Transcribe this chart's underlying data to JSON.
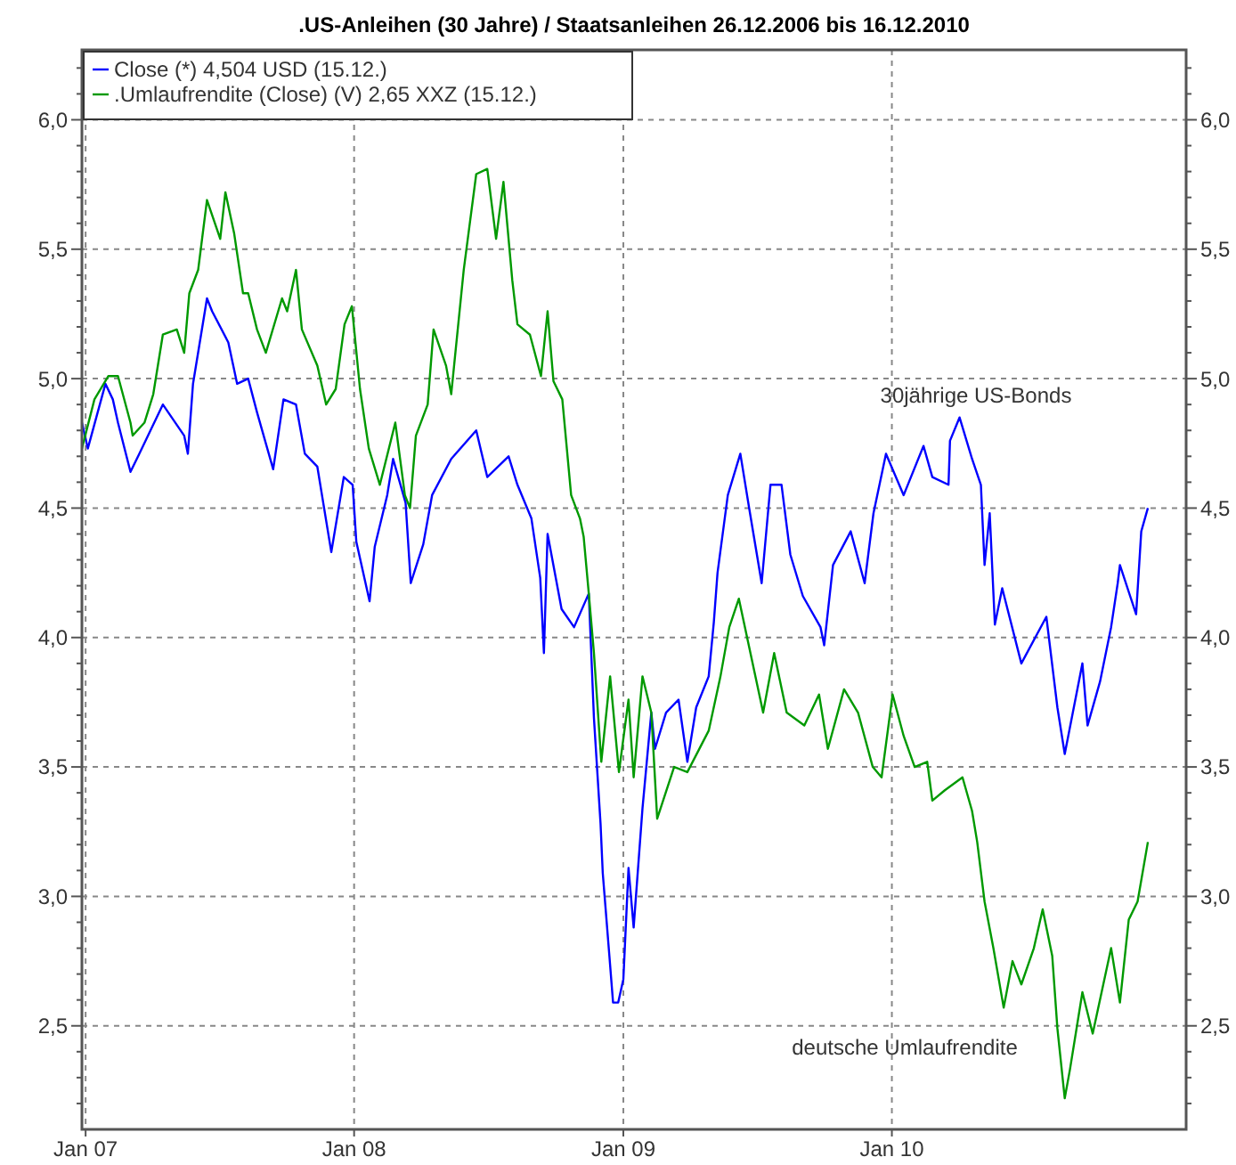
{
  "chart_data": {
    "type": "line",
    "title": ".US-Anleihen (30 Jahre) / Staatsanleihen 26.12.2006 bis 16.12.2010",
    "xlim": [
      "2006-12-27",
      "2011-02-05"
    ],
    "xticks": [
      {
        "value": "2007-01-01",
        "label": "Jan 07"
      },
      {
        "value": "2008-01-01",
        "label": "Jan 08"
      },
      {
        "value": "2009-01-01",
        "label": "Jan 09"
      },
      {
        "value": "2010-01-01",
        "label": "Jan 10"
      }
    ],
    "ylim": [
      2.1,
      6.27
    ],
    "yticks": [
      {
        "value": 2.2,
        "label": null
      },
      {
        "value": 2.3,
        "label": null
      },
      {
        "value": 2.4,
        "label": null
      },
      {
        "value": 2.5,
        "label": "2,5"
      },
      {
        "value": 2.6,
        "label": null
      },
      {
        "value": 2.7,
        "label": null
      },
      {
        "value": 2.8,
        "label": null
      },
      {
        "value": 2.9,
        "label": null
      },
      {
        "value": 3.0,
        "label": "3,0"
      },
      {
        "value": 3.1,
        "label": null
      },
      {
        "value": 3.2,
        "label": null
      },
      {
        "value": 3.3,
        "label": null
      },
      {
        "value": 3.4,
        "label": null
      },
      {
        "value": 3.5,
        "label": "3,5"
      },
      {
        "value": 3.6,
        "label": null
      },
      {
        "value": 3.7,
        "label": null
      },
      {
        "value": 3.8,
        "label": null
      },
      {
        "value": 3.9,
        "label": null
      },
      {
        "value": 4.0,
        "label": "4,0"
      },
      {
        "value": 4.1,
        "label": null
      },
      {
        "value": 4.2,
        "label": null
      },
      {
        "value": 4.3,
        "label": null
      },
      {
        "value": 4.4,
        "label": null
      },
      {
        "value": 4.5,
        "label": "4,5"
      },
      {
        "value": 4.6,
        "label": null
      },
      {
        "value": 4.7,
        "label": null
      },
      {
        "value": 4.8,
        "label": null
      },
      {
        "value": 4.9,
        "label": null
      },
      {
        "value": 5.0,
        "label": "5,0"
      },
      {
        "value": 5.1,
        "label": null
      },
      {
        "value": 5.2,
        "label": null
      },
      {
        "value": 5.3,
        "label": null
      },
      {
        "value": 5.4,
        "label": null
      },
      {
        "value": 5.5,
        "label": "5,5"
      },
      {
        "value": 5.6,
        "label": null
      },
      {
        "value": 5.7,
        "label": null
      },
      {
        "value": 5.8,
        "label": null
      },
      {
        "value": 5.9,
        "label": null
      },
      {
        "value": 6.0,
        "label": "6,0"
      },
      {
        "value": 6.1,
        "label": null
      },
      {
        "value": 6.2,
        "label": null
      }
    ],
    "y2lim": [
      2.1,
      6.27
    ],
    "y2ticks": [
      {
        "value": 2.2,
        "label": null
      },
      {
        "value": 2.3,
        "label": null
      },
      {
        "value": 2.4,
        "label": null
      },
      {
        "value": 2.5,
        "label": "2,5"
      },
      {
        "value": 2.6,
        "label": null
      },
      {
        "value": 2.7,
        "label": null
      },
      {
        "value": 2.8,
        "label": null
      },
      {
        "value": 2.9,
        "label": null
      },
      {
        "value": 3.0,
        "label": "3,0"
      },
      {
        "value": 3.1,
        "label": null
      },
      {
        "value": 3.2,
        "label": null
      },
      {
        "value": 3.3,
        "label": null
      },
      {
        "value": 3.4,
        "label": null
      },
      {
        "value": 3.5,
        "label": "3,5"
      },
      {
        "value": 3.6,
        "label": null
      },
      {
        "value": 3.7,
        "label": null
      },
      {
        "value": 3.8,
        "label": null
      },
      {
        "value": 3.9,
        "label": null
      },
      {
        "value": 4.0,
        "label": "4,0"
      },
      {
        "value": 4.1,
        "label": null
      },
      {
        "value": 4.2,
        "label": null
      },
      {
        "value": 4.3,
        "label": null
      },
      {
        "value": 4.4,
        "label": null
      },
      {
        "value": 4.5,
        "label": "4,5"
      },
      {
        "value": 4.6,
        "label": null
      },
      {
        "value": 4.7,
        "label": null
      },
      {
        "value": 4.8,
        "label": null
      },
      {
        "value": 4.9,
        "label": null
      },
      {
        "value": 5.0,
        "label": "5,0"
      },
      {
        "value": 5.1,
        "label": null
      },
      {
        "value": 5.2,
        "label": null
      },
      {
        "value": 5.3,
        "label": null
      },
      {
        "value": 5.4,
        "label": null
      },
      {
        "value": 5.5,
        "label": "5,5"
      },
      {
        "value": 5.6,
        "label": null
      },
      {
        "value": 5.7,
        "label": null
      },
      {
        "value": 5.8,
        "label": null
      },
      {
        "value": 5.9,
        "label": null
      },
      {
        "value": 6.0,
        "label": "6,0"
      },
      {
        "value": 6.1,
        "label": null
      },
      {
        "value": 6.2,
        "label": null
      }
    ],
    "grid": true,
    "legend": "top left",
    "series": [
      {
        "name": "Close (*) 4,504 USD (15.12.)",
        "color": "#0000ff",
        "x": [
          "2006-12-27",
          "2007-01-04",
          "2007-01-28",
          "2007-02-07",
          "2007-02-14",
          "2007-03-03",
          "2007-03-15",
          "2007-04-16",
          "2007-05-15",
          "2007-05-20",
          "2007-05-27",
          "2007-06-15",
          "2007-06-22",
          "2007-07-14",
          "2007-07-26",
          "2007-08-10",
          "2007-08-22",
          "2007-09-13",
          "2007-09-27",
          "2007-10-14",
          "2007-10-26",
          "2007-11-12",
          "2007-12-01",
          "2007-12-18",
          "2007-12-30",
          "2008-01-04",
          "2008-01-22",
          "2008-01-29",
          "2008-02-15",
          "2008-02-23",
          "2008-03-11",
          "2008-03-18",
          "2008-04-04",
          "2008-04-16",
          "2008-05-12",
          "2008-06-15",
          "2008-06-30",
          "2008-07-29",
          "2008-08-10",
          "2008-08-29",
          "2008-09-10",
          "2008-09-15",
          "2008-09-20",
          "2008-10-09",
          "2008-10-26",
          "2008-11-15",
          "2008-11-22",
          "2008-12-01",
          "2008-12-04",
          "2008-12-13",
          "2008-12-18",
          "2008-12-25",
          "2009-01-01",
          "2009-01-08",
          "2009-01-15",
          "2009-01-27",
          "2009-02-08",
          "2009-02-13",
          "2009-02-28",
          "2009-03-17",
          "2009-03-29",
          "2009-04-10",
          "2009-04-27",
          "2009-05-04",
          "2009-05-09",
          "2009-05-23",
          "2009-06-09",
          "2009-06-21",
          "2009-07-08",
          "2009-07-20",
          "2009-08-04",
          "2009-08-16",
          "2009-09-02",
          "2009-09-26",
          "2009-10-01",
          "2009-10-13",
          "2009-11-06",
          "2009-11-25",
          "2009-12-07",
          "2009-12-24",
          "2010-01-17",
          "2010-02-13",
          "2010-02-25",
          "2010-03-19",
          "2010-03-21",
          "2010-04-03",
          "2010-04-20",
          "2010-05-02",
          "2010-05-07",
          "2010-05-14",
          "2010-05-21",
          "2010-05-31",
          "2010-06-26",
          "2010-07-30",
          "2010-08-14",
          "2010-08-24",
          "2010-09-17",
          "2010-09-24",
          "2010-10-11",
          "2010-10-26",
          "2010-11-04",
          "2010-11-07",
          "2010-11-29",
          "2010-12-06",
          "2010-12-15"
        ],
        "values": [
          4.83,
          4.73,
          4.98,
          4.92,
          4.83,
          4.64,
          4.71,
          4.9,
          4.78,
          4.71,
          4.98,
          5.31,
          5.26,
          5.14,
          4.98,
          5.0,
          4.87,
          4.65,
          4.92,
          4.9,
          4.71,
          4.66,
          4.33,
          4.62,
          4.59,
          4.37,
          4.14,
          4.35,
          4.55,
          4.69,
          4.52,
          4.21,
          4.36,
          4.55,
          4.69,
          4.8,
          4.62,
          4.7,
          4.59,
          4.46,
          4.23,
          3.94,
          4.4,
          4.11,
          4.04,
          4.17,
          3.69,
          3.28,
          3.09,
          2.77,
          2.59,
          2.59,
          2.68,
          3.11,
          2.88,
          3.34,
          3.71,
          3.57,
          3.71,
          3.76,
          3.52,
          3.73,
          3.85,
          4.06,
          4.25,
          4.55,
          4.71,
          4.5,
          4.21,
          4.59,
          4.59,
          4.32,
          4.16,
          4.04,
          3.97,
          4.28,
          4.41,
          4.21,
          4.48,
          4.71,
          4.55,
          4.74,
          4.62,
          4.59,
          4.76,
          4.85,
          4.69,
          4.59,
          4.28,
          4.48,
          4.05,
          4.19,
          3.9,
          4.08,
          3.73,
          3.55,
          3.9,
          3.66,
          3.83,
          4.04,
          4.21,
          4.28,
          4.09,
          4.41,
          4.5
        ]
      },
      {
        "name": ".Umlaufrendite (Close) (V) 2,65 XXZ (15.12.)",
        "color": "#009900",
        "x": [
          "2006-12-27",
          "2007-01-13",
          "2007-02-01",
          "2007-02-14",
          "2007-03-03",
          "2007-03-06",
          "2007-03-22",
          "2007-04-03",
          "2007-04-16",
          "2007-05-05",
          "2007-05-15",
          "2007-05-22",
          "2007-06-03",
          "2007-06-15",
          "2007-07-03",
          "2007-07-10",
          "2007-07-22",
          "2007-08-03",
          "2007-08-10",
          "2007-08-22",
          "2007-09-03",
          "2007-09-25",
          "2007-10-02",
          "2007-10-14",
          "2007-10-22",
          "2007-11-12",
          "2007-11-24",
          "2007-12-07",
          "2007-12-19",
          "2007-12-29",
          "2008-01-09",
          "2008-01-21",
          "2008-02-05",
          "2008-02-26",
          "2008-03-10",
          "2008-03-17",
          "2008-03-25",
          "2008-04-10",
          "2008-04-18",
          "2008-05-05",
          "2008-05-12",
          "2008-05-29",
          "2008-06-15",
          "2008-06-30",
          "2008-07-12",
          "2008-07-22",
          "2008-08-03",
          "2008-08-10",
          "2008-08-27",
          "2008-09-11",
          "2008-09-20",
          "2008-09-28",
          "2008-10-10",
          "2008-10-22",
          "2008-11-03",
          "2008-11-08",
          "2008-11-15",
          "2008-11-22",
          "2008-12-02",
          "2008-12-14",
          "2008-12-26",
          "2009-01-08",
          "2009-01-15",
          "2009-01-27",
          "2009-02-08",
          "2009-02-16",
          "2009-03-11",
          "2009-03-29",
          "2009-04-27",
          "2009-05-13",
          "2009-05-25",
          "2009-06-07",
          "2009-06-19",
          "2009-07-10",
          "2009-07-25",
          "2009-08-11",
          "2009-09-04",
          "2009-09-24",
          "2009-10-06",
          "2009-10-28",
          "2009-11-16",
          "2009-12-06",
          "2009-12-18",
          "2010-01-02",
          "2010-01-17",
          "2010-02-01",
          "2010-02-18",
          "2010-02-25",
          "2010-03-14",
          "2010-04-07",
          "2010-04-20",
          "2010-04-27",
          "2010-05-07",
          "2010-05-19",
          "2010-06-02",
          "2010-06-14",
          "2010-06-26",
          "2010-07-13",
          "2010-07-25",
          "2010-08-07",
          "2010-08-14",
          "2010-08-24",
          "2010-08-31",
          "2010-09-17",
          "2010-10-01",
          "2010-10-26",
          "2010-11-07",
          "2010-11-19",
          "2010-12-01",
          "2010-12-15"
        ],
        "values": [
          4.73,
          4.92,
          5.01,
          5.01,
          4.83,
          4.78,
          4.83,
          4.94,
          5.17,
          5.19,
          5.1,
          5.33,
          5.42,
          5.69,
          5.54,
          5.72,
          5.56,
          5.33,
          5.33,
          5.19,
          5.1,
          5.31,
          5.26,
          5.42,
          5.19,
          5.05,
          4.9,
          4.96,
          5.21,
          5.28,
          4.96,
          4.73,
          4.59,
          4.83,
          4.55,
          4.5,
          4.78,
          4.9,
          5.19,
          5.05,
          4.94,
          5.42,
          5.79,
          5.81,
          5.54,
          5.76,
          5.38,
          5.21,
          5.17,
          5.01,
          5.26,
          4.99,
          4.92,
          4.55,
          4.46,
          4.39,
          4.17,
          3.94,
          3.52,
          3.85,
          3.48,
          3.76,
          3.46,
          3.85,
          3.71,
          3.3,
          3.5,
          3.48,
          3.64,
          3.85,
          4.04,
          4.15,
          3.99,
          3.71,
          3.94,
          3.71,
          3.66,
          3.78,
          3.57,
          3.8,
          3.71,
          3.5,
          3.46,
          3.78,
          3.62,
          3.5,
          3.52,
          3.37,
          3.41,
          3.46,
          3.33,
          3.21,
          2.98,
          2.8,
          2.57,
          2.75,
          2.66,
          2.8,
          2.95,
          2.77,
          2.49,
          2.22,
          2.33,
          2.63,
          2.47,
          2.8,
          2.59,
          2.91,
          2.98,
          3.21
        ]
      }
    ],
    "annotations": [
      "30jährige US-Bonds",
      "deutsche Umlaufrendite"
    ]
  }
}
